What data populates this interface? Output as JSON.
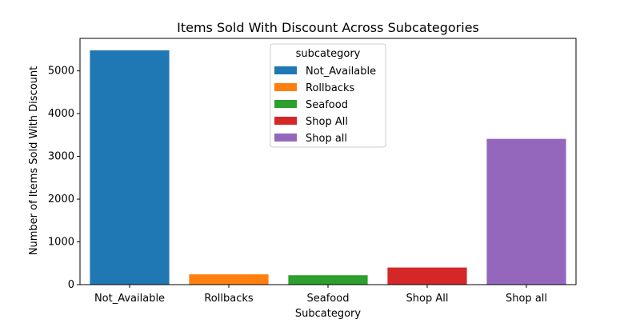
{
  "chart_data": {
    "type": "bar",
    "title": "Items Sold With Discount Across Subcategories",
    "xlabel": "Subcategory",
    "ylabel": "Number of Items Sold With Discount",
    "categories": [
      "Not_Available",
      "Rollbacks",
      "Seafood",
      "Shop All",
      "Shop all"
    ],
    "values": [
      5480,
      240,
      220,
      400,
      3410
    ],
    "colors": [
      "#1f77b4",
      "#ff7f0e",
      "#2ca02c",
      "#d62728",
      "#9467bd"
    ],
    "ylim": [
      0,
      5760
    ],
    "yticks": [
      0,
      1000,
      2000,
      3000,
      4000,
      5000
    ],
    "ytick_labels": [
      "0",
      "1000",
      "2000",
      "3000",
      "4000",
      "5000"
    ],
    "grid": false,
    "legend": {
      "title": "subcategory",
      "placement": "top-center",
      "entries": [
        "Not_Available",
        "Rollbacks",
        "Seafood",
        "Shop All",
        "Shop all"
      ]
    }
  }
}
